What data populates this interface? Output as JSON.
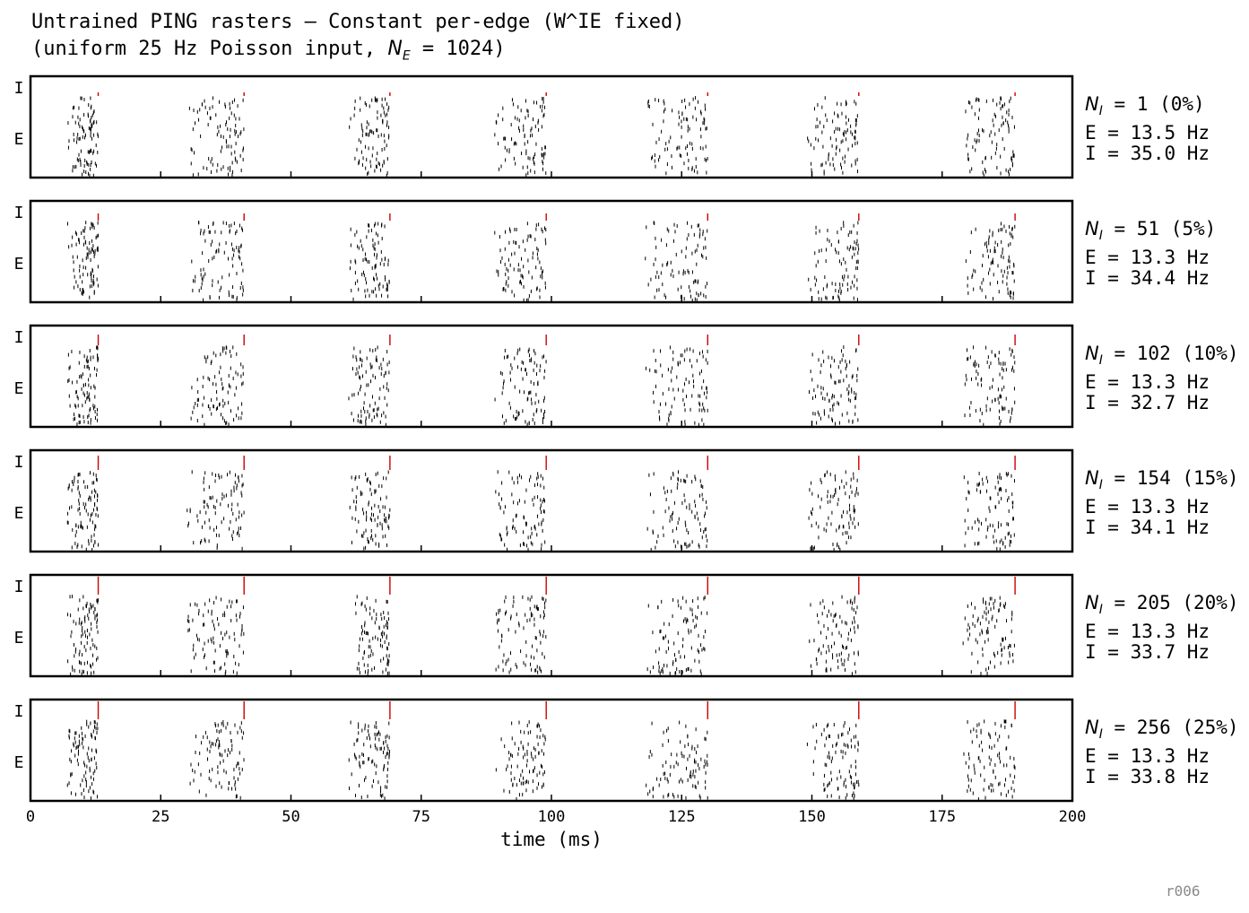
{
  "title_line1": "Untrained PING rasters — Constant per-edge (W^IE fixed)",
  "title_line2_prefix": "(uniform 25 Hz Poisson input, ",
  "title_line2_var": "N",
  "title_line2_sub": "E",
  "title_line2_suffix": " = 1024)",
  "footer_tag": "r006",
  "colors": {
    "excitatory": "#000000",
    "inhibitory": "#cc0000",
    "frame": "#000000"
  },
  "chart_data": {
    "type": "scatter",
    "subtype": "raster",
    "xlabel": "time (ms)",
    "xlim": [
      0,
      200
    ],
    "x_ticks": [
      0,
      25,
      50,
      75,
      100,
      125,
      150,
      175,
      200
    ],
    "y_ticklabels": [
      "I",
      "E"
    ],
    "cycle_e_windows_ms": [
      [
        7,
        13
      ],
      [
        30,
        41
      ],
      [
        61,
        69
      ],
      [
        89,
        99
      ],
      [
        118,
        130
      ],
      [
        149,
        159
      ],
      [
        179,
        189
      ]
    ],
    "cycle_i_times_ms": [
      13,
      41,
      69,
      99,
      130,
      159,
      189
    ],
    "panels": [
      {
        "ni_prefix": "N",
        "ni_sub": "I",
        "ni_text": " = 1 (0%)",
        "e_rate": "E = 13.5 Hz",
        "i_rate": "I = 35.0 Hz",
        "ni_fraction": 0.0
      },
      {
        "ni_prefix": "N",
        "ni_sub": "I",
        "ni_text": " = 51 (5%)",
        "e_rate": "E = 13.3 Hz",
        "i_rate": "I = 34.4 Hz",
        "ni_fraction": 0.05
      },
      {
        "ni_prefix": "N",
        "ni_sub": "I",
        "ni_text": " = 102 (10%)",
        "e_rate": "E = 13.3 Hz",
        "i_rate": "I = 32.7 Hz",
        "ni_fraction": 0.1
      },
      {
        "ni_prefix": "N",
        "ni_sub": "I",
        "ni_text": " = 154 (15%)",
        "e_rate": "E = 13.3 Hz",
        "i_rate": "I = 34.1 Hz",
        "ni_fraction": 0.15
      },
      {
        "ni_prefix": "N",
        "ni_sub": "I",
        "ni_text": " = 205 (20%)",
        "e_rate": "E = 13.3 Hz",
        "i_rate": "I = 33.7 Hz",
        "ni_fraction": 0.2
      },
      {
        "ni_prefix": "N",
        "ni_sub": "I",
        "ni_text": " = 256 (25%)",
        "e_rate": "E = 13.3 Hz",
        "i_rate": "I = 33.8 Hz",
        "ni_fraction": 0.25
      }
    ]
  }
}
